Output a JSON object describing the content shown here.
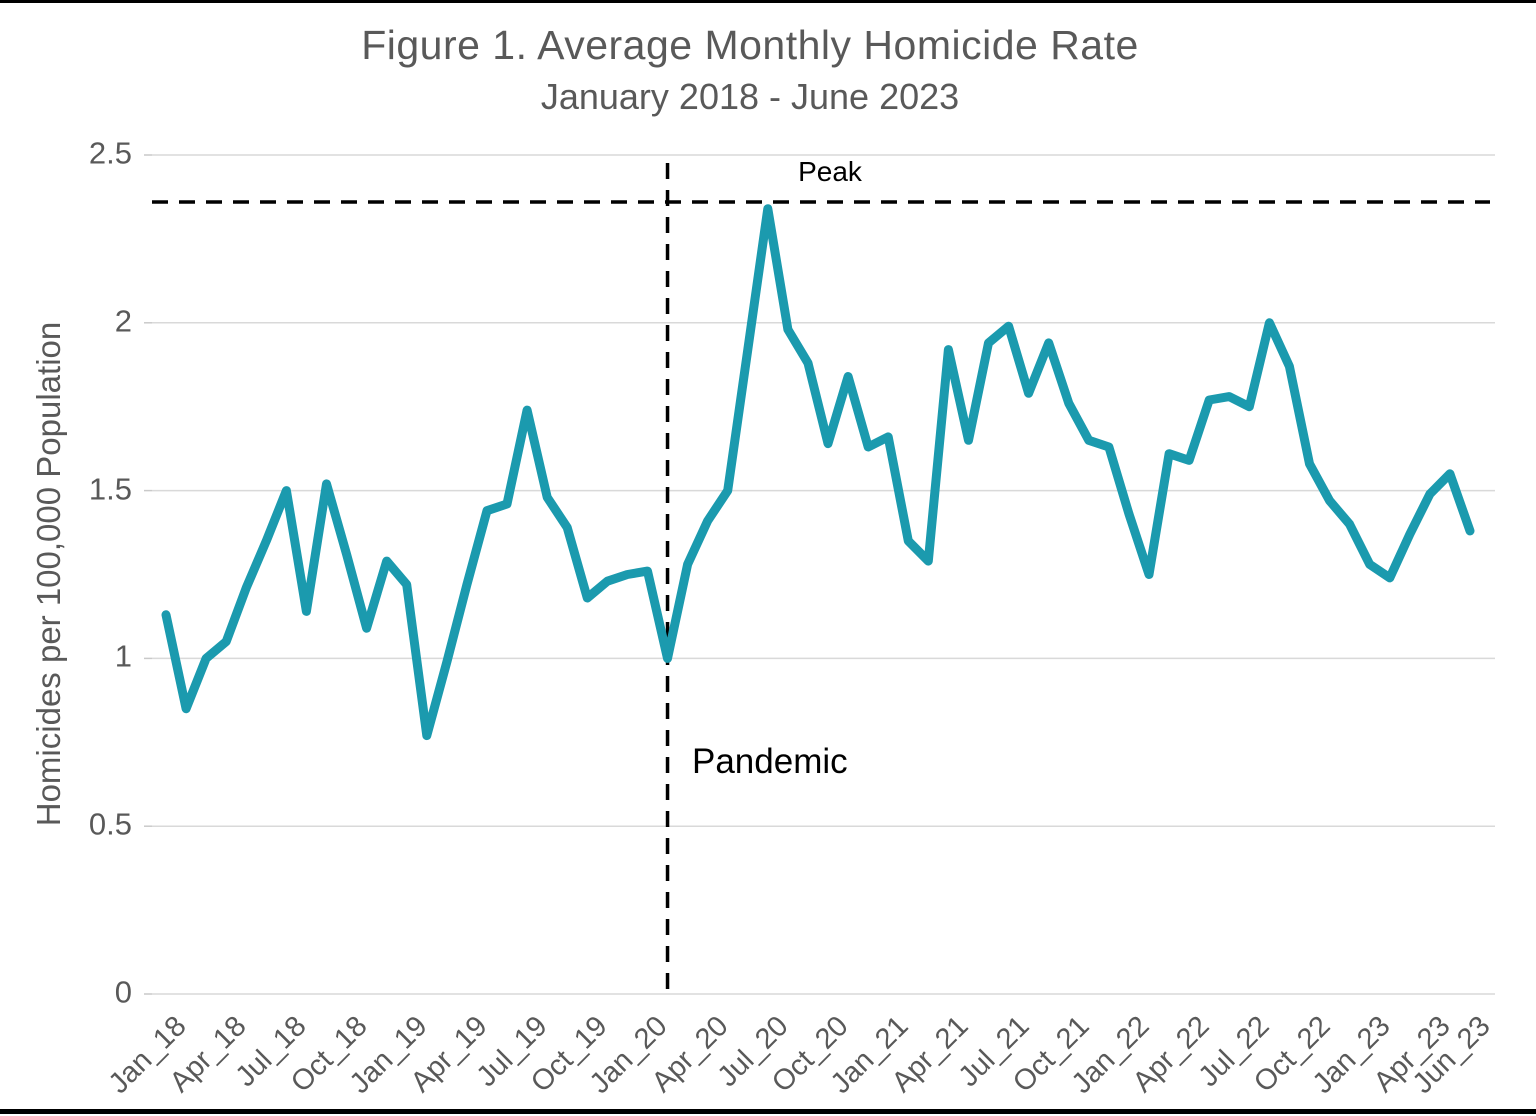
{
  "chart_data": {
    "type": "line",
    "title": "Figure 1. Average Monthly Homicide Rate",
    "subtitle": "January 2018 - June 2023",
    "ylabel": "Homicides per 100,000 Population",
    "xlabel": "",
    "ylim": [
      0,
      2.5
    ],
    "yticks": [
      0,
      0.5,
      1,
      1.5,
      2,
      2.5
    ],
    "ytick_labels": [
      "0",
      "0.5",
      "1",
      "1.5",
      "2",
      "2.5"
    ],
    "grid": "horizontal",
    "legend": "none",
    "months": [
      "Jan_18",
      "Feb_18",
      "Mar_18",
      "Apr_18",
      "May_18",
      "Jun_18",
      "Jul_18",
      "Aug_18",
      "Sep_18",
      "Oct_18",
      "Nov_18",
      "Dec_18",
      "Jan_19",
      "Feb_19",
      "Mar_19",
      "Apr_19",
      "May_19",
      "Jun_19",
      "Jul_19",
      "Aug_19",
      "Sep_19",
      "Oct_19",
      "Nov_19",
      "Dec_19",
      "Jan_20",
      "Feb_20",
      "Mar_20",
      "Apr_20",
      "May_20",
      "Jun_20",
      "Jul_20",
      "Aug_20",
      "Sep_20",
      "Oct_20",
      "Nov_20",
      "Dec_20",
      "Jan_21",
      "Feb_21",
      "Mar_21",
      "Apr_21",
      "May_21",
      "Jun_21",
      "Jul_21",
      "Aug_21",
      "Sep_21",
      "Oct_21",
      "Nov_21",
      "Dec_21",
      "Jan_22",
      "Feb_22",
      "Mar_22",
      "Apr_22",
      "May_22",
      "Jun_22",
      "Jul_22",
      "Aug_22",
      "Sep_22",
      "Oct_22",
      "Nov_22",
      "Dec_22",
      "Jan_23",
      "Feb_23",
      "Mar_23",
      "Apr_23",
      "May_23",
      "Jun_23"
    ],
    "values": [
      1.13,
      0.85,
      1.0,
      1.05,
      1.21,
      1.35,
      1.5,
      1.14,
      1.52,
      1.31,
      1.09,
      1.29,
      1.22,
      0.77,
      0.99,
      1.22,
      1.44,
      1.46,
      1.74,
      1.48,
      1.39,
      1.18,
      1.23,
      1.25,
      1.26,
      1.0,
      1.28,
      1.41,
      1.5,
      1.92,
      2.34,
      1.98,
      1.88,
      1.64,
      1.84,
      1.63,
      1.66,
      1.35,
      1.29,
      1.92,
      1.65,
      1.94,
      1.99,
      1.79,
      1.94,
      1.76,
      1.65,
      1.63,
      1.43,
      1.25,
      1.61,
      1.59,
      1.77,
      1.78,
      1.75,
      2.0,
      1.87,
      1.58,
      1.47,
      1.4,
      1.28,
      1.24,
      1.37,
      1.49,
      1.55,
      1.38
    ],
    "xtick_labels": [
      "Jan_18",
      "Apr_18",
      "Jul_18",
      "Oct_18",
      "Jan_19",
      "Apr_19",
      "Jul_19",
      "Oct_19",
      "Jan_20",
      "Apr_20",
      "Jul_20",
      "Oct_20",
      "Jan_21",
      "Apr_21",
      "Jul_21",
      "Oct_21",
      "Jan_22",
      "Apr_22",
      "Jul_22",
      "Oct_22",
      "Jan_23",
      "Apr_23",
      "Jun_23"
    ],
    "annotations": {
      "peak": {
        "label": "Peak",
        "type": "horizontal-dashed-line",
        "value": 2.36
      },
      "pandemic": {
        "label": "Pandemic",
        "type": "vertical-dashed-line",
        "month": "Feb_20"
      }
    },
    "colors": {
      "line": "#1B9AAE",
      "grid": "#D9D9D9",
      "axis_text": "#595959",
      "annotation": "#000000"
    }
  }
}
